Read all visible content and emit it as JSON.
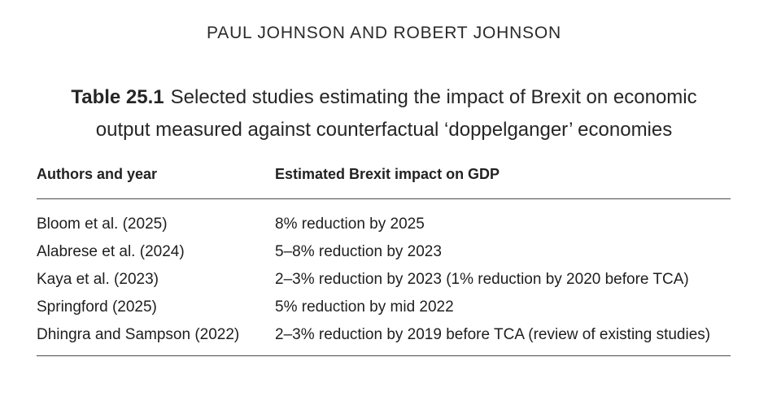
{
  "running_head": "PAUL JOHNSON AND ROBERT JOHNSON",
  "caption": {
    "label": "Table 25.1",
    "line1": "Selected studies estimating the impact of Brexit on economic",
    "line2": "output measured against counterfactual ‘doppelganger’ economies"
  },
  "table": {
    "headers": [
      "Authors and year",
      "Estimated Brexit impact on GDP"
    ],
    "rows": [
      [
        "Bloom et al. (2025)",
        "8% reduction by 2025"
      ],
      [
        "Alabrese et al. (2024)",
        "5–8% reduction by 2023"
      ],
      [
        "Kaya et al. (2023)",
        "2–3% reduction by 2023 (1% reduction by 2020 before TCA)"
      ],
      [
        "Springford (2025)",
        "5% reduction by mid 2022"
      ],
      [
        "Dhingra and Sampson (2022)",
        "2–3% reduction by 2019 before TCA (review of existing studies)"
      ]
    ]
  }
}
